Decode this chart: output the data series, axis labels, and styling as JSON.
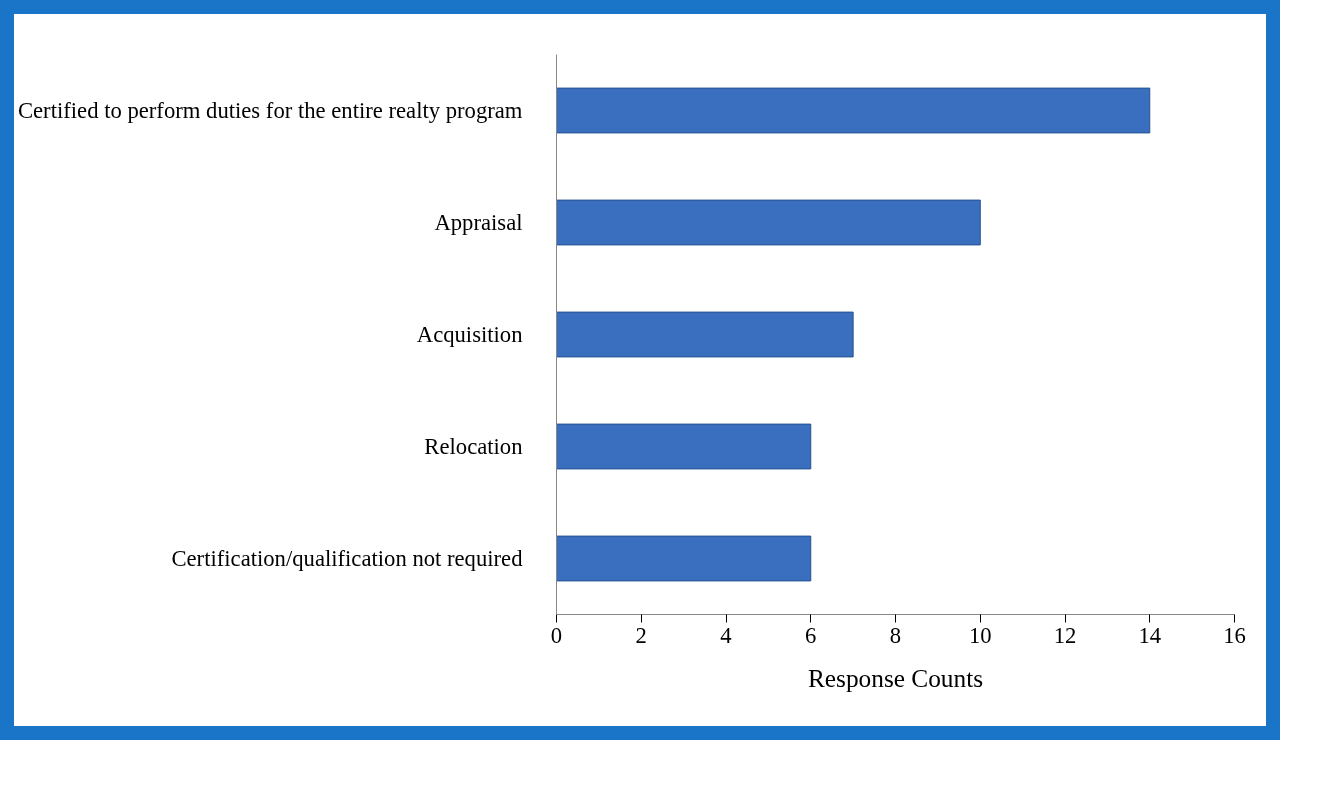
{
  "chart_data": {
    "type": "bar",
    "orientation": "horizontal",
    "xlabel": "Response Counts",
    "categories": [
      "Certified to perform duties for the entire realty program",
      "Appraisal",
      "Acquisition",
      "Relocation",
      "Certification/qualification not required"
    ],
    "values": [
      14,
      10,
      7,
      6,
      6
    ],
    "color": "#3a6fc0",
    "xlim": [
      0,
      16
    ],
    "xticks": [
      0,
      2,
      4,
      6,
      8,
      10,
      12,
      14,
      16
    ],
    "grid": false
  }
}
